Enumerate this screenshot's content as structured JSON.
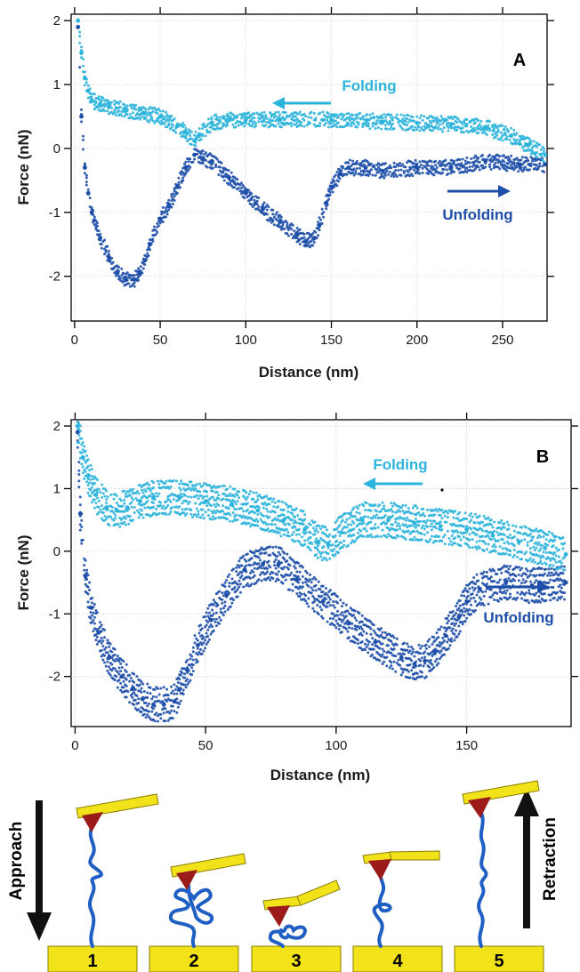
{
  "colors": {
    "folding": "#2db4dc",
    "unfolding": "#1e4fa8",
    "cantilever": "#f2e21a",
    "tip": "#9b1b1b",
    "substrate": "#f2e21a",
    "protein": "#1f5fc4"
  },
  "chart_data": [
    {
      "type": "scatter",
      "panel": "A",
      "xlabel": "Distance (nm)",
      "ylabel": "Force (nN)",
      "xlim": [
        -2,
        276
      ],
      "ylim": [
        -2.7,
        2.1
      ],
      "xticks": [
        0,
        50,
        100,
        150,
        200,
        250
      ],
      "yticks": [
        -2,
        -1,
        0,
        1,
        2
      ],
      "grid": true,
      "annotations": [
        {
          "text": "Folding",
          "series": "folding",
          "arrow": "left"
        },
        {
          "text": "Unfolding",
          "series": "unfolding",
          "arrow": "right"
        }
      ],
      "series": [
        {
          "name": "",
          "role": "folding",
          "x": [
            2,
            4,
            6,
            8,
            10,
            15,
            20,
            30,
            40,
            50,
            60,
            65,
            70,
            73,
            80,
            90,
            100,
            120,
            150,
            180,
            200,
            220,
            240,
            255,
            265,
            275
          ],
          "y": [
            2.0,
            1.5,
            1.1,
            0.9,
            0.75,
            0.7,
            0.65,
            0.6,
            0.55,
            0.5,
            0.35,
            0.25,
            0.12,
            0.22,
            0.4,
            0.45,
            0.45,
            0.45,
            0.45,
            0.42,
            0.4,
            0.38,
            0.33,
            0.2,
            0.05,
            -0.1
          ]
        },
        {
          "name": "",
          "role": "unfolding",
          "x": [
            2,
            4,
            6,
            8,
            10,
            15,
            20,
            25,
            30,
            35,
            38,
            41,
            44,
            50,
            55,
            60,
            65,
            70,
            75,
            80,
            90,
            100,
            110,
            120,
            130,
            135,
            140,
            143,
            147,
            150,
            155,
            160,
            170,
            180,
            200,
            220,
            240,
            260,
            275
          ],
          "y": [
            1.9,
            0.5,
            -0.3,
            -0.7,
            -1.0,
            -1.4,
            -1.7,
            -1.95,
            -2.05,
            -2.05,
            -1.95,
            -1.75,
            -1.5,
            -1.1,
            -0.9,
            -0.6,
            -0.3,
            -0.1,
            -0.15,
            -0.2,
            -0.45,
            -0.7,
            -0.95,
            -1.15,
            -1.35,
            -1.45,
            -1.4,
            -1.2,
            -0.85,
            -0.6,
            -0.4,
            -0.3,
            -0.3,
            -0.35,
            -0.3,
            -0.3,
            -0.2,
            -0.25,
            -0.25
          ]
        }
      ]
    },
    {
      "type": "scatter",
      "panel": "B",
      "xlabel": "Distance (nm)",
      "ylabel": "Force (nN)",
      "xlim": [
        -1.5,
        190
      ],
      "ylim": [
        -2.8,
        2.1
      ],
      "xticks": [
        0,
        50,
        100,
        150
      ],
      "yticks": [
        -2,
        -1,
        0,
        1,
        2
      ],
      "grid": true,
      "annotations": [
        {
          "text": "Folding",
          "series": "folding",
          "arrow": "left"
        },
        {
          "text": "Unfolding",
          "series": "unfolding",
          "arrow": "right"
        }
      ],
      "series": [
        {
          "name": "",
          "role": "folding",
          "x": [
            1,
            3,
            5,
            8,
            12,
            16,
            20,
            25,
            30,
            40,
            50,
            60,
            70,
            80,
            88,
            93,
            97,
            102,
            110,
            120,
            130,
            140,
            150,
            160,
            170,
            180,
            188
          ],
          "y": [
            2.0,
            1.5,
            1.2,
            0.9,
            0.7,
            0.65,
            0.7,
            0.8,
            0.85,
            0.85,
            0.8,
            0.75,
            0.65,
            0.5,
            0.35,
            0.15,
            0.1,
            0.3,
            0.5,
            0.5,
            0.45,
            0.4,
            0.35,
            0.25,
            0.15,
            0.05,
            -0.05
          ]
        },
        {
          "name": "",
          "role": "unfolding",
          "x": [
            1,
            2,
            4,
            6,
            9,
            13,
            18,
            22,
            26,
            30,
            34,
            38,
            40,
            43,
            47,
            52,
            58,
            65,
            72,
            78,
            85,
            95,
            105,
            115,
            125,
            130,
            134,
            138,
            142,
            147,
            150,
            155,
            165,
            175,
            188
          ],
          "y": [
            1.9,
            0.6,
            -0.4,
            -0.9,
            -1.3,
            -1.7,
            -2.0,
            -2.2,
            -2.35,
            -2.45,
            -2.45,
            -2.4,
            -2.2,
            -1.9,
            -1.5,
            -1.1,
            -0.7,
            -0.3,
            -0.2,
            -0.2,
            -0.45,
            -0.8,
            -1.15,
            -1.45,
            -1.7,
            -1.8,
            -1.75,
            -1.6,
            -1.35,
            -1.05,
            -0.8,
            -0.6,
            -0.5,
            -0.55,
            -0.5
          ]
        }
      ]
    }
  ],
  "schematic": {
    "approach_label": "Approach",
    "retraction_label": "Retraction",
    "steps": [
      {
        "number": "1"
      },
      {
        "number": "2"
      },
      {
        "number": "3"
      },
      {
        "number": "4"
      },
      {
        "number": "5"
      }
    ]
  }
}
